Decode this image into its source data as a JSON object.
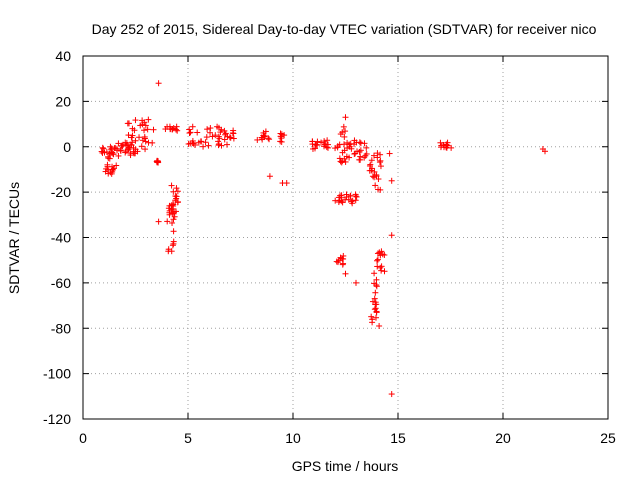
{
  "chart_data": {
    "type": "scatter",
    "title": "Day 252 of 2015, Sidereal Day-to-day VTEC variation (SDTVAR) for receiver nico",
    "xlabel": "GPS time / hours",
    "ylabel": "SDTVAR / TECUs",
    "xlim": [
      0,
      25
    ],
    "ylim": [
      -120,
      40
    ],
    "xticks": [
      0,
      5,
      10,
      15,
      20,
      25
    ],
    "yticks": [
      40,
      20,
      0,
      -20,
      -40,
      -60,
      -80,
      -100,
      -120
    ],
    "grid": true,
    "marker": "plus",
    "color": "#ff0000",
    "clusters": [
      {
        "x": [
          0.8,
          1.6
        ],
        "y": [
          -4,
          0
        ]
      },
      {
        "x": [
          0.9,
          1.6
        ],
        "y": [
          -12,
          -4
        ]
      },
      {
        "x": [
          1.6,
          2.6
        ],
        "y": [
          -6,
          2
        ]
      },
      {
        "x": [
          2.0,
          3.4
        ],
        "y": [
          -3,
          12
        ]
      },
      {
        "x": [
          3.5,
          3.6
        ],
        "y": [
          -7,
          -6
        ]
      },
      {
        "x": [
          3.9,
          4.5
        ],
        "y": [
          7,
          9
        ]
      },
      {
        "x": [
          4.0,
          4.4
        ],
        "y": [
          -48,
          -25
        ]
      },
      {
        "x": [
          4.2,
          4.6
        ],
        "y": [
          -30,
          -17
        ]
      },
      {
        "x": [
          5.0,
          7.2
        ],
        "y": [
          0,
          9
        ]
      },
      {
        "x": [
          8.5,
          8.9
        ],
        "y": [
          3,
          7
        ]
      },
      {
        "x": [
          9.3,
          9.6
        ],
        "y": [
          2,
          6
        ]
      },
      {
        "x": [
          10.8,
          11.7
        ],
        "y": [
          -1,
          3
        ]
      },
      {
        "x": [
          12.0,
          12.6
        ],
        "y": [
          -7,
          10
        ]
      },
      {
        "x": [
          12.6,
          13.6
        ],
        "y": [
          -6,
          3
        ]
      },
      {
        "x": [
          12.0,
          13.1
        ],
        "y": [
          -25,
          -21
        ]
      },
      {
        "x": [
          12.0,
          12.4
        ],
        "y": [
          -52,
          -48
        ]
      },
      {
        "x": [
          13.6,
          14.2
        ],
        "y": [
          -20,
          -2
        ]
      },
      {
        "x": [
          13.7,
          14.0
        ],
        "y": [
          -78,
          -55
        ]
      },
      {
        "x": [
          14.0,
          14.4
        ],
        "y": [
          -55,
          -45
        ]
      },
      {
        "x": [
          17.0,
          17.6
        ],
        "y": [
          -1,
          2
        ]
      }
    ],
    "points": [
      {
        "x": 3.6,
        "y": 28
      },
      {
        "x": 12.5,
        "y": 13
      },
      {
        "x": 8.3,
        "y": 3
      },
      {
        "x": 9.5,
        "y": -16
      },
      {
        "x": 9.7,
        "y": -16
      },
      {
        "x": 8.9,
        "y": -13
      },
      {
        "x": 3.6,
        "y": -33
      },
      {
        "x": 12.5,
        "y": -56
      },
      {
        "x": 13.0,
        "y": -60
      },
      {
        "x": 14.1,
        "y": -79
      },
      {
        "x": 14.7,
        "y": -39
      },
      {
        "x": 14.7,
        "y": -15
      },
      {
        "x": 14.6,
        "y": -3
      },
      {
        "x": 14.7,
        "y": -109
      },
      {
        "x": 21.9,
        "y": -1
      },
      {
        "x": 22.0,
        "y": -2
      }
    ]
  }
}
